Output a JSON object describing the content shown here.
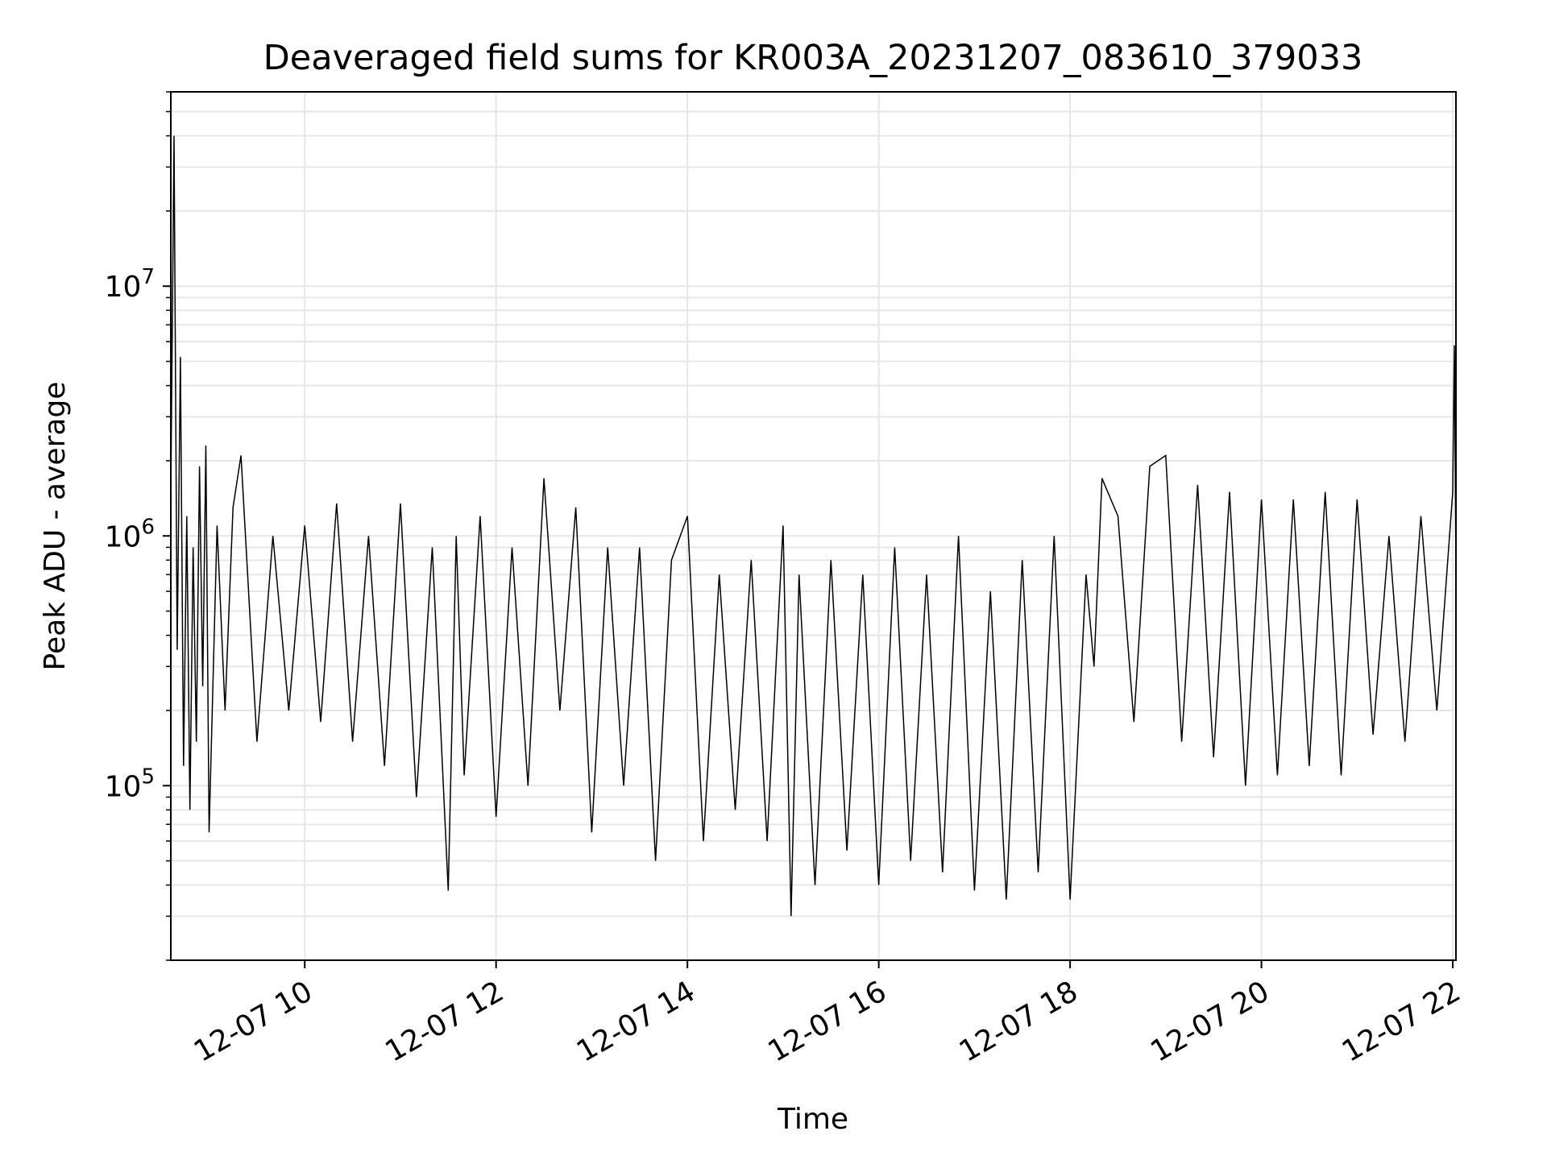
{
  "chart_data": {
    "type": "line",
    "title": "Deaveraged field sums for KR003A_20231207_083610_379033",
    "xlabel": "Time",
    "ylabel": "Peak ADU - average",
    "y_scale": "log",
    "ylim": [
      20000,
      60000000
    ],
    "xlim": [
      "2023-12-07 08:36",
      "2023-12-07 22:02"
    ],
    "x_ticks": [
      {
        "value": "2023-12-07 10:00",
        "label": "12-07 10"
      },
      {
        "value": "2023-12-07 12:00",
        "label": "12-07 12"
      },
      {
        "value": "2023-12-07 14:00",
        "label": "12-07 14"
      },
      {
        "value": "2023-12-07 16:00",
        "label": "12-07 16"
      },
      {
        "value": "2023-12-07 18:00",
        "label": "12-07 18"
      },
      {
        "value": "2023-12-07 20:00",
        "label": "12-07 20"
      },
      {
        "value": "2023-12-07 22:00",
        "label": "12-07 22"
      }
    ],
    "y_ticks": [
      {
        "value": 100000,
        "base": "10",
        "exp": "5"
      },
      {
        "value": 1000000,
        "base": "10",
        "exp": "6"
      },
      {
        "value": 10000000,
        "base": "10",
        "exp": "7"
      }
    ],
    "grid": true,
    "line_color": "#000000",
    "grid_color": "#e6e6e6",
    "series": [
      {
        "x": [
          "2023-12-07 08:36",
          "2023-12-07 08:38",
          "2023-12-07 08:40",
          "2023-12-07 08:42",
          "2023-12-07 08:44",
          "2023-12-07 08:46",
          "2023-12-07 08:48",
          "2023-12-07 08:50",
          "2023-12-07 08:52",
          "2023-12-07 08:54",
          "2023-12-07 08:56",
          "2023-12-07 08:58",
          "2023-12-07 09:00",
          "2023-12-07 09:05",
          "2023-12-07 09:10",
          "2023-12-07 09:15",
          "2023-12-07 09:20",
          "2023-12-07 09:30",
          "2023-12-07 09:40",
          "2023-12-07 09:50",
          "2023-12-07 10:00",
          "2023-12-07 10:10",
          "2023-12-07 10:20",
          "2023-12-07 10:30",
          "2023-12-07 10:40",
          "2023-12-07 10:50",
          "2023-12-07 11:00",
          "2023-12-07 11:10",
          "2023-12-07 11:20",
          "2023-12-07 11:30",
          "2023-12-07 11:35",
          "2023-12-07 11:40",
          "2023-12-07 11:50",
          "2023-12-07 12:00",
          "2023-12-07 12:10",
          "2023-12-07 12:20",
          "2023-12-07 12:30",
          "2023-12-07 12:40",
          "2023-12-07 12:50",
          "2023-12-07 13:00",
          "2023-12-07 13:10",
          "2023-12-07 13:20",
          "2023-12-07 13:30",
          "2023-12-07 13:40",
          "2023-12-07 13:50",
          "2023-12-07 14:00",
          "2023-12-07 14:10",
          "2023-12-07 14:20",
          "2023-12-07 14:30",
          "2023-12-07 14:40",
          "2023-12-07 14:50",
          "2023-12-07 15:00",
          "2023-12-07 15:05",
          "2023-12-07 15:10",
          "2023-12-07 15:20",
          "2023-12-07 15:30",
          "2023-12-07 15:40",
          "2023-12-07 15:50",
          "2023-12-07 16:00",
          "2023-12-07 16:10",
          "2023-12-07 16:20",
          "2023-12-07 16:30",
          "2023-12-07 16:40",
          "2023-12-07 16:50",
          "2023-12-07 17:00",
          "2023-12-07 17:10",
          "2023-12-07 17:20",
          "2023-12-07 17:30",
          "2023-12-07 17:40",
          "2023-12-07 17:50",
          "2023-12-07 18:00",
          "2023-12-07 18:10",
          "2023-12-07 18:15",
          "2023-12-07 18:20",
          "2023-12-07 18:30",
          "2023-12-07 18:40",
          "2023-12-07 18:50",
          "2023-12-07 19:00",
          "2023-12-07 19:10",
          "2023-12-07 19:20",
          "2023-12-07 19:30",
          "2023-12-07 19:40",
          "2023-12-07 19:50",
          "2023-12-07 20:00",
          "2023-12-07 20:10",
          "2023-12-07 20:20",
          "2023-12-07 20:30",
          "2023-12-07 20:40",
          "2023-12-07 20:50",
          "2023-12-07 21:00",
          "2023-12-07 21:10",
          "2023-12-07 21:20",
          "2023-12-07 21:30",
          "2023-12-07 21:40",
          "2023-12-07 21:50",
          "2023-12-07 22:00",
          "2023-12-07 22:01",
          "2023-12-07 22:02"
        ],
        "y": [
          1500000,
          40000000,
          350000,
          5200000,
          120000,
          1200000,
          80000,
          900000,
          150000,
          1900000,
          250000,
          2300000,
          65000,
          1100000,
          200000,
          1300000,
          2100000,
          150000,
          1000000,
          200000,
          1100000,
          180000,
          1350000,
          150000,
          1000000,
          120000,
          1350000,
          90000,
          900000,
          38000,
          1000000,
          110000,
          1200000,
          75000,
          900000,
          100000,
          1700000,
          200000,
          1300000,
          65000,
          900000,
          100000,
          900000,
          50000,
          800000,
          1200000,
          60000,
          700000,
          80000,
          800000,
          60000,
          1100000,
          30000,
          700000,
          40000,
          800000,
          55000,
          700000,
          40000,
          900000,
          50000,
          700000,
          45000,
          1000000,
          38000,
          600000,
          35000,
          800000,
          45000,
          1000000,
          35000,
          700000,
          300000,
          1700000,
          1200000,
          180000,
          1900000,
          2100000,
          150000,
          1600000,
          130000,
          1500000,
          100000,
          1400000,
          110000,
          1400000,
          120000,
          1500000,
          110000,
          1400000,
          160000,
          1000000,
          150000,
          1200000,
          200000,
          1500000,
          5800000,
          700000
        ]
      }
    ]
  }
}
